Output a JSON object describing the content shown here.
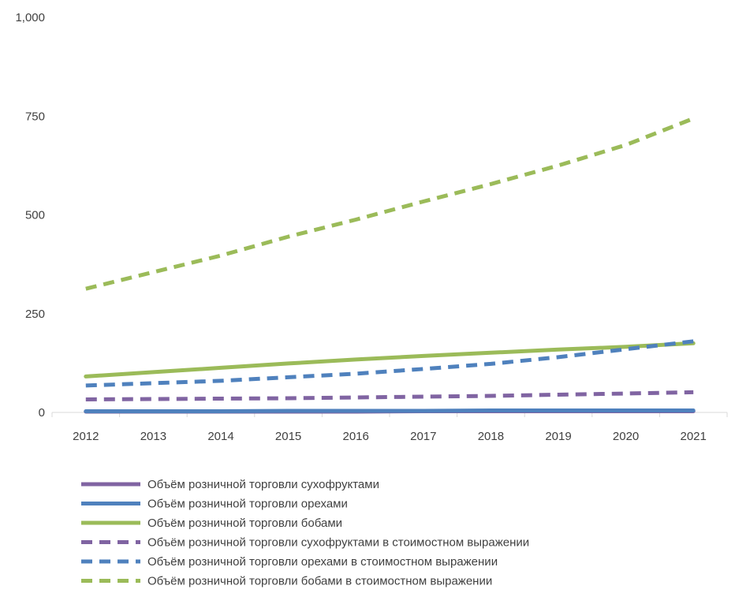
{
  "chart_data": {
    "type": "line",
    "title": "",
    "xlabel": "",
    "ylabel": "",
    "categories": [
      "2012",
      "2013",
      "2014",
      "2015",
      "2016",
      "2017",
      "2018",
      "2019",
      "2020",
      "2021"
    ],
    "ylim": [
      0,
      1000
    ],
    "yticks": [
      0,
      250,
      500,
      750,
      1000
    ],
    "ytick_labels": [
      "0",
      "250",
      "500",
      "750",
      "1,000"
    ],
    "grid": false,
    "legend_position": "bottom",
    "series": [
      {
        "name": "Объём розничной торговли сухофруктами",
        "color": "#8064a2",
        "dash": "solid",
        "values": [
          2,
          2,
          2,
          2,
          2,
          3,
          3,
          3,
          3,
          3
        ]
      },
      {
        "name": "Объём розничной торговли орехами",
        "color": "#4f81bd",
        "dash": "solid",
        "values": [
          3,
          3,
          3,
          4,
          4,
          4,
          5,
          5,
          5,
          5
        ]
      },
      {
        "name": "Объём розничной торговли бобами",
        "color": "#9bbb59",
        "dash": "solid",
        "values": [
          91,
          102,
          113,
          124,
          134,
          143,
          151,
          159,
          166,
          175
        ]
      },
      {
        "name": "Объём розничной торговли сухофруктами в стоимостном выражении",
        "color": "#8064a2",
        "dash": "dashed",
        "values": [
          33,
          34,
          35,
          36,
          38,
          40,
          42,
          45,
          48,
          51
        ]
      },
      {
        "name": "Объём розничной торговли орехами в стоимостном выражении",
        "color": "#4f81bd",
        "dash": "dashed",
        "values": [
          68,
          74,
          80,
          89,
          98,
          110,
          123,
          140,
          160,
          180
        ]
      },
      {
        "name": "Объём розничной торговли бобами в стоимостном выражении",
        "color": "#9bbb59",
        "dash": "dashed",
        "values": [
          313,
          355,
          397,
          445,
          488,
          534,
          578,
          625,
          677,
          744
        ]
      }
    ]
  }
}
